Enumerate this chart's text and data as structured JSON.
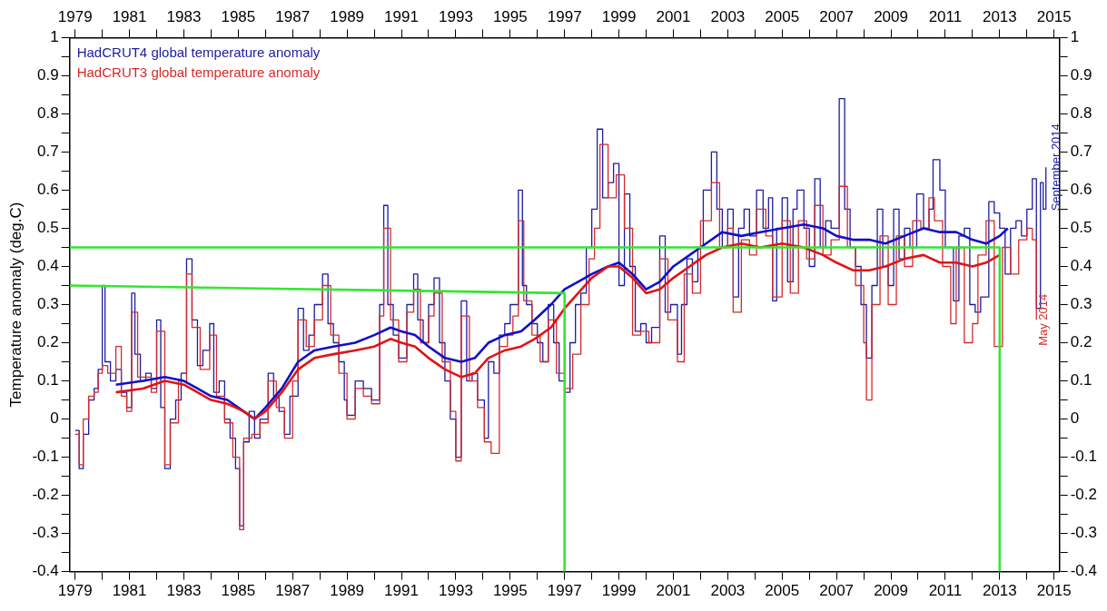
{
  "chart_data": {
    "type": "step",
    "ylabel": "Temperature anomaly (deg.C)",
    "xlim": [
      1978.8,
      2015.2
    ],
    "x2lim": [
      1978.8,
      2015.2
    ],
    "xticks": [
      1979,
      {
        "value": 1980,
        "label": null
      },
      1981,
      {
        "value": 1982,
        "label": null
      },
      1983,
      {
        "value": 1984,
        "label": null
      },
      1985,
      {
        "value": 1986,
        "label": null
      },
      1987,
      {
        "value": 1988,
        "label": null
      },
      1989,
      {
        "value": 1990,
        "label": null
      },
      1991,
      {
        "value": 1992,
        "label": null
      },
      1993,
      {
        "value": 1994,
        "label": null
      },
      1995,
      {
        "value": 1996,
        "label": null
      },
      1997,
      {
        "value": 1998,
        "label": null
      },
      1999,
      {
        "value": 2000,
        "label": null
      },
      2001,
      {
        "value": 2002,
        "label": null
      },
      2003,
      {
        "value": 2004,
        "label": null
      },
      2005,
      {
        "value": 2006,
        "label": null
      },
      2007,
      {
        "value": 2008,
        "label": null
      },
      2009,
      {
        "value": 2010,
        "label": null
      },
      2011,
      {
        "value": 2012,
        "label": null
      },
      2013,
      {
        "value": 2014,
        "label": null
      },
      2015
    ],
    "x2ticks": [
      1979,
      {
        "value": 1980,
        "label": null
      },
      1981,
      {
        "value": 1982,
        "label": null
      },
      1983,
      {
        "value": 1984,
        "label": null
      },
      1985,
      {
        "value": 1986,
        "label": null
      },
      1987,
      {
        "value": 1988,
        "label": null
      },
      1989,
      {
        "value": 1990,
        "label": null
      },
      1991,
      {
        "value": 1992,
        "label": null
      },
      1993,
      {
        "value": 1994,
        "label": null
      },
      1995,
      {
        "value": 1996,
        "label": null
      },
      1997,
      {
        "value": 1998,
        "label": null
      },
      1999,
      {
        "value": 2000,
        "label": null
      },
      2001,
      {
        "value": 2002,
        "label": null
      },
      2003,
      {
        "value": 2004,
        "label": null
      },
      2005,
      {
        "value": 2006,
        "label": null
      },
      2007,
      {
        "value": 2008,
        "label": null
      },
      2009,
      {
        "value": 2010,
        "label": null
      },
      2011,
      {
        "value": 2012,
        "label": null
      },
      2013,
      {
        "value": 2014,
        "label": null
      },
      2015
    ],
    "ylim": [
      -0.4,
      1
    ],
    "y2lim": [
      -0.4,
      1
    ],
    "yticks": [
      -0.4,
      {
        "value": -0.35,
        "label": null
      },
      -0.3,
      {
        "value": -0.25,
        "label": null
      },
      -0.2,
      {
        "value": -0.15,
        "label": null
      },
      -0.1,
      {
        "value": -0.05,
        "label": null
      },
      0,
      {
        "value": 0.05,
        "label": null
      },
      0.1,
      {
        "value": 0.15,
        "label": null
      },
      0.2,
      {
        "value": 0.25,
        "label": null
      },
      0.3,
      {
        "value": 0.35,
        "label": null
      },
      0.4,
      {
        "value": 0.45,
        "label": null
      },
      0.5,
      {
        "value": 0.55,
        "label": null
      },
      0.6,
      {
        "value": 0.65,
        "label": null
      },
      0.7,
      {
        "value": 0.75,
        "label": null
      },
      0.8,
      {
        "value": 0.85,
        "label": null
      },
      0.9,
      {
        "value": 0.95,
        "label": null
      },
      1
    ],
    "y2ticks": [
      -0.4,
      {
        "value": -0.35,
        "label": null
      },
      -0.3,
      {
        "value": -0.25,
        "label": null
      },
      -0.2,
      {
        "value": -0.15,
        "label": null
      },
      -0.1,
      {
        "value": -0.05,
        "label": null
      },
      0,
      {
        "value": 0.05,
        "label": null
      },
      0.1,
      {
        "value": 0.15,
        "label": null
      },
      0.2,
      {
        "value": 0.25,
        "label": null
      },
      0.3,
      {
        "value": 0.35,
        "label": null
      },
      0.4,
      {
        "value": 0.45,
        "label": null
      },
      0.5,
      {
        "value": 0.55,
        "label": null
      },
      0.6,
      {
        "value": 0.65,
        "label": null
      },
      0.7,
      {
        "value": 0.75,
        "label": null
      },
      0.8,
      {
        "value": 0.85,
        "label": null
      },
      0.9,
      {
        "value": 0.95,
        "label": null
      },
      1
    ],
    "grid": false,
    "legend": "top left",
    "marker": "none",
    "line_style": "solid",
    "annotations": [
      {
        "text": "May 2014",
        "x": 2014.35,
        "y": 0.26
      },
      {
        "text": "September 2014",
        "x": 2014.7,
        "y": 0.66
      }
    ],
    "series": [
      {
        "name": "HadCRUT4 global temperature anomaly",
        "color": "#1c1ca0",
        "x": [
          1979.0,
          1979.15,
          1979.3,
          1979.5,
          1979.7,
          1979.85,
          1980.0,
          1980.1,
          1980.3,
          1980.5,
          1980.7,
          1980.9,
          1981.08,
          1981.2,
          1981.4,
          1981.6,
          1981.8,
          1982.0,
          1982.15,
          1982.3,
          1982.5,
          1982.7,
          1982.9,
          1983.1,
          1983.3,
          1983.5,
          1983.7,
          1983.95,
          1984.1,
          1984.3,
          1984.5,
          1984.7,
          1984.9,
          1985.05,
          1985.2,
          1985.4,
          1985.6,
          1985.8,
          1986.1,
          1986.3,
          1986.5,
          1986.7,
          1986.9,
          1987.2,
          1987.4,
          1987.6,
          1987.8,
          1988.1,
          1988.3,
          1988.5,
          1988.7,
          1988.9,
          1989.0,
          1989.3,
          1989.6,
          1989.9,
          1990.2,
          1990.35,
          1990.5,
          1990.7,
          1990.9,
          1991.2,
          1991.45,
          1991.6,
          1991.8,
          1992.0,
          1992.2,
          1992.4,
          1992.6,
          1992.8,
          1993.0,
          1993.2,
          1993.4,
          1993.6,
          1993.8,
          1994.05,
          1994.2,
          1994.4,
          1994.6,
          1994.8,
          1995.0,
          1995.3,
          1995.45,
          1995.6,
          1995.8,
          1996.0,
          1996.2,
          1996.4,
          1996.6,
          1996.8,
          1997.0,
          1997.2,
          1997.4,
          1997.6,
          1997.8,
          1998.0,
          1998.2,
          1998.4,
          1998.6,
          1998.8,
          1999.0,
          1999.2,
          1999.4,
          1999.6,
          1999.8,
          2000.0,
          2000.2,
          2000.5,
          2000.7,
          2000.9,
          2001.15,
          2001.3,
          2001.5,
          2001.7,
          2001.9,
          2002.1,
          2002.4,
          2002.6,
          2002.8,
          2003.0,
          2003.2,
          2003.4,
          2003.6,
          2003.8,
          2004.06,
          2004.3,
          2004.5,
          2004.65,
          2004.8,
          2005.0,
          2005.2,
          2005.4,
          2005.55,
          2005.8,
          2006.0,
          2006.2,
          2006.4,
          2006.6,
          2006.8,
          2007.1,
          2007.3,
          2007.5,
          2007.7,
          2007.9,
          2008.1,
          2008.3,
          2008.5,
          2008.7,
          2008.9,
          2009.1,
          2009.3,
          2009.5,
          2009.7,
          2009.95,
          2010.2,
          2010.4,
          2010.55,
          2010.8,
          2011.0,
          2011.3,
          2011.5,
          2011.7,
          2011.9,
          2012.1,
          2012.3,
          2012.6,
          2012.8,
          2013.0,
          2013.2,
          2013.4,
          2013.6,
          2013.8,
          2014.0,
          2014.2,
          2014.35,
          2014.5,
          2014.6,
          2014.7
        ],
        "values": [
          -0.03,
          -0.13,
          -0.04,
          0.05,
          0.08,
          0.13,
          0.35,
          0.15,
          0.1,
          0.13,
          0.07,
          0.03,
          0.33,
          0.17,
          0.1,
          0.12,
          0.08,
          0.26,
          0.03,
          -0.13,
          0.0,
          0.05,
          0.12,
          0.42,
          0.26,
          0.14,
          0.18,
          0.25,
          0.07,
          0.1,
          0.0,
          -0.05,
          -0.13,
          -0.28,
          -0.06,
          0.02,
          -0.05,
          0.0,
          0.12,
          0.06,
          0.02,
          -0.04,
          0.06,
          0.29,
          0.18,
          0.22,
          0.3,
          0.38,
          0.25,
          0.2,
          0.15,
          0.05,
          0.01,
          0.1,
          0.08,
          0.05,
          0.3,
          0.56,
          0.3,
          0.22,
          0.16,
          0.3,
          0.38,
          0.26,
          0.2,
          0.3,
          0.37,
          0.2,
          0.1,
          0.0,
          -0.1,
          0.31,
          0.1,
          0.12,
          0.05,
          -0.05,
          0.15,
          0.12,
          0.22,
          0.25,
          0.3,
          0.6,
          0.35,
          0.3,
          0.25,
          0.2,
          0.15,
          0.3,
          0.2,
          0.1,
          0.07,
          0.2,
          0.3,
          0.33,
          0.45,
          0.55,
          0.76,
          0.58,
          0.62,
          0.67,
          0.35,
          0.59,
          0.4,
          0.23,
          0.25,
          0.2,
          0.24,
          0.48,
          0.28,
          0.3,
          0.17,
          0.3,
          0.42,
          0.36,
          0.45,
          0.6,
          0.7,
          0.55,
          0.45,
          0.55,
          0.32,
          0.5,
          0.55,
          0.48,
          0.6,
          0.5,
          0.58,
          0.31,
          0.5,
          0.58,
          0.36,
          0.55,
          0.6,
          0.5,
          0.4,
          0.63,
          0.45,
          0.52,
          0.5,
          0.84,
          0.55,
          0.45,
          0.4,
          0.3,
          0.16,
          0.35,
          0.55,
          0.4,
          0.35,
          0.55,
          0.42,
          0.5,
          0.45,
          0.59,
          0.5,
          0.55,
          0.68,
          0.6,
          0.45,
          0.31,
          0.48,
          0.5,
          0.3,
          0.28,
          0.32,
          0.57,
          0.54,
          0.5,
          0.38,
          0.5,
          0.52,
          0.48,
          0.55,
          0.63,
          0.29,
          0.62,
          0.55,
          0.66
        ]
      },
      {
        "name": "HadCRUT3 global temperature anomaly",
        "color": "#d42a2a",
        "x": [
          1979.0,
          1979.15,
          1979.3,
          1979.5,
          1979.7,
          1979.85,
          1980.0,
          1980.2,
          1980.5,
          1980.7,
          1980.9,
          1981.08,
          1981.3,
          1981.6,
          1981.8,
          1982.0,
          1982.3,
          1982.5,
          1982.8,
          1983.1,
          1983.3,
          1983.6,
          1983.95,
          1984.2,
          1984.5,
          1984.8,
          1985.05,
          1985.2,
          1985.5,
          1985.8,
          1986.1,
          1986.4,
          1986.7,
          1987.0,
          1987.2,
          1987.5,
          1987.8,
          1988.1,
          1988.4,
          1988.7,
          1989.0,
          1989.3,
          1989.6,
          1989.9,
          1990.2,
          1990.35,
          1990.6,
          1990.9,
          1991.2,
          1991.45,
          1991.7,
          1992.0,
          1992.2,
          1992.5,
          1992.8,
          1993.0,
          1993.2,
          1993.5,
          1993.8,
          1994.05,
          1994.3,
          1994.6,
          1994.9,
          1995.1,
          1995.3,
          1995.5,
          1995.8,
          1996.1,
          1996.4,
          1996.7,
          1997.0,
          1997.3,
          1997.6,
          1997.9,
          1998.1,
          1998.3,
          1998.6,
          1998.9,
          1999.2,
          1999.5,
          1999.8,
          2000.1,
          2000.5,
          2000.8,
          2001.15,
          2001.4,
          2001.7,
          2002.0,
          2002.4,
          2002.7,
          2003.0,
          2003.2,
          2003.5,
          2003.8,
          2004.06,
          2004.4,
          2004.65,
          2005.0,
          2005.3,
          2005.6,
          2005.9,
          2006.2,
          2006.5,
          2006.8,
          2007.1,
          2007.4,
          2007.7,
          2008.0,
          2008.1,
          2008.3,
          2008.6,
          2008.9,
          2009.2,
          2009.5,
          2009.8,
          2010.1,
          2010.4,
          2010.6,
          2010.9,
          2011.2,
          2011.4,
          2011.7,
          2012.0,
          2012.2,
          2012.5,
          2012.8,
          2013.1,
          2013.4,
          2013.7,
          2014.0,
          2014.2,
          2014.35
        ],
        "values": [
          -0.04,
          -0.12,
          0.0,
          0.06,
          0.07,
          0.12,
          0.14,
          0.12,
          0.19,
          0.06,
          0.02,
          0.28,
          0.11,
          0.11,
          0.07,
          0.23,
          -0.12,
          -0.01,
          0.1,
          0.38,
          0.24,
          0.13,
          0.22,
          0.06,
          -0.01,
          -0.1,
          -0.29,
          -0.05,
          -0.04,
          -0.01,
          0.1,
          0.03,
          -0.05,
          0.1,
          0.26,
          0.19,
          0.26,
          0.35,
          0.22,
          0.12,
          0.0,
          0.08,
          0.06,
          0.04,
          0.27,
          0.5,
          0.26,
          0.15,
          0.28,
          0.34,
          0.2,
          0.27,
          0.33,
          0.15,
          0.02,
          -0.11,
          0.27,
          0.1,
          0.03,
          -0.06,
          -0.09,
          0.19,
          0.22,
          0.27,
          0.52,
          0.31,
          0.22,
          0.15,
          0.26,
          0.12,
          0.08,
          0.17,
          0.3,
          0.42,
          0.5,
          0.72,
          0.58,
          0.64,
          0.5,
          0.22,
          0.23,
          0.2,
          0.42,
          0.26,
          0.15,
          0.38,
          0.33,
          0.52,
          0.62,
          0.45,
          0.5,
          0.28,
          0.47,
          0.43,
          0.55,
          0.48,
          0.32,
          0.52,
          0.33,
          0.52,
          0.42,
          0.56,
          0.43,
          0.47,
          0.61,
          0.45,
          0.35,
          0.2,
          0.05,
          0.3,
          0.48,
          0.3,
          0.48,
          0.4,
          0.52,
          0.5,
          0.58,
          0.52,
          0.4,
          0.25,
          0.45,
          0.2,
          0.25,
          0.43,
          0.52,
          0.19,
          0.45,
          0.38,
          0.47,
          0.5,
          0.47,
          0.26
        ]
      },
      {
        "color": "#1010c8",
        "type": "line",
        "x": [
          1980.5,
          1981.5,
          1982.3,
          1983.0,
          1983.5,
          1984.0,
          1984.6,
          1985.2,
          1985.6,
          1986.0,
          1986.6,
          1987.2,
          1987.8,
          1988.5,
          1989.3,
          1990.0,
          1990.6,
          1991.0,
          1991.5,
          1992.0,
          1992.6,
          1993.2,
          1993.7,
          1994.2,
          1994.8,
          1995.4,
          1995.9,
          1996.5,
          1997.0,
          1997.5,
          1998.0,
          1998.6,
          1999.0,
          1999.5,
          2000.0,
          2000.5,
          2001.0,
          2001.6,
          2002.2,
          2002.8,
          2003.5,
          2004.2,
          2005.0,
          2005.8,
          2006.5,
          2007.0,
          2007.6,
          2008.2,
          2008.8,
          2009.5,
          2010.2,
          2010.8,
          2011.4,
          2012.0,
          2012.5,
          2013.0,
          2013.3
        ],
        "values": [
          0.09,
          0.1,
          0.11,
          0.1,
          0.08,
          0.06,
          0.05,
          0.02,
          0.0,
          0.03,
          0.08,
          0.15,
          0.18,
          0.19,
          0.2,
          0.22,
          0.24,
          0.23,
          0.22,
          0.19,
          0.16,
          0.15,
          0.16,
          0.2,
          0.22,
          0.23,
          0.26,
          0.3,
          0.34,
          0.36,
          0.38,
          0.4,
          0.41,
          0.38,
          0.34,
          0.36,
          0.4,
          0.43,
          0.46,
          0.49,
          0.48,
          0.49,
          0.5,
          0.51,
          0.5,
          0.48,
          0.47,
          0.47,
          0.46,
          0.48,
          0.5,
          0.49,
          0.49,
          0.47,
          0.46,
          0.48,
          0.5
        ]
      },
      {
        "color": "#e01414",
        "type": "line",
        "x": [
          1980.5,
          1981.5,
          1982.3,
          1983.0,
          1983.5,
          1984.0,
          1984.6,
          1985.2,
          1985.6,
          1986.0,
          1986.6,
          1987.2,
          1987.8,
          1988.5,
          1989.3,
          1990.0,
          1990.6,
          1991.0,
          1991.5,
          1992.0,
          1992.6,
          1993.2,
          1993.7,
          1994.2,
          1994.8,
          1995.4,
          1995.9,
          1996.5,
          1997.0,
          1997.5,
          1998.0,
          1998.6,
          1999.0,
          1999.5,
          2000.0,
          2000.5,
          2001.0,
          2001.6,
          2002.2,
          2002.8,
          2003.5,
          2004.2,
          2005.0,
          2005.8,
          2006.5,
          2007.0,
          2007.6,
          2008.2,
          2008.8,
          2009.5,
          2010.2,
          2010.8,
          2011.4,
          2012.0,
          2012.5,
          2013.0
        ],
        "values": [
          0.07,
          0.08,
          0.1,
          0.09,
          0.07,
          0.05,
          0.04,
          0.02,
          0.0,
          0.02,
          0.07,
          0.13,
          0.16,
          0.17,
          0.18,
          0.19,
          0.21,
          0.2,
          0.19,
          0.16,
          0.13,
          0.11,
          0.12,
          0.16,
          0.18,
          0.19,
          0.21,
          0.24,
          0.29,
          0.33,
          0.37,
          0.4,
          0.4,
          0.37,
          0.33,
          0.34,
          0.37,
          0.4,
          0.43,
          0.45,
          0.46,
          0.45,
          0.46,
          0.45,
          0.43,
          0.41,
          0.39,
          0.39,
          0.4,
          0.42,
          0.43,
          0.41,
          0.41,
          0.4,
          0.41,
          0.43
        ]
      },
      {
        "color": "#33e633",
        "type": "line",
        "x": [
          1978.8,
          1997,
          1997
        ],
        "values": [
          0.35,
          0.33,
          -0.4
        ]
      },
      {
        "color": "#33e633",
        "type": "line",
        "x": [
          1978.8,
          2013,
          2013
        ],
        "values": [
          0.45,
          0.45,
          -0.4
        ]
      }
    ]
  }
}
